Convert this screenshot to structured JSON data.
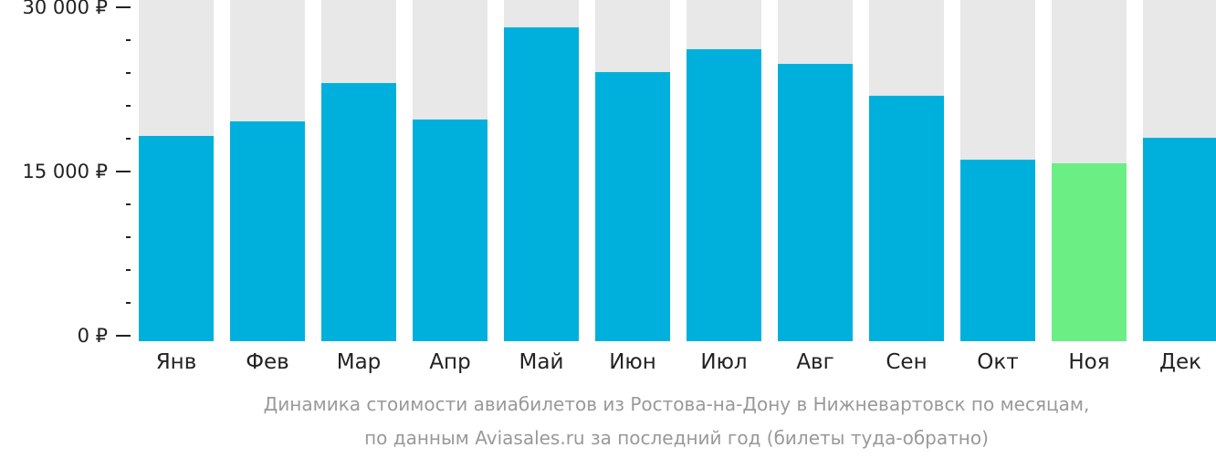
{
  "chart_data": {
    "type": "bar",
    "categories": [
      "Янв",
      "Фев",
      "Мар",
      "Апр",
      "Май",
      "Июн",
      "Июл",
      "Авг",
      "Сен",
      "Окт",
      "Ноя",
      "Дек"
    ],
    "values": [
      18250,
      19580,
      23080,
      19750,
      28170,
      24080,
      26170,
      24830,
      21920,
      16080,
      15750,
      18080
    ],
    "highlight_index": 10,
    "ylim": [
      0,
      30000
    ],
    "yticks": [
      {
        "value": 0,
        "label": "0 ₽"
      },
      {
        "value": 15000,
        "label": "15 000 ₽"
      },
      {
        "value": 30000,
        "label": "30 000 ₽"
      }
    ],
    "minor_tick_step": 3000,
    "title": "",
    "xlabel": "",
    "ylabel": "",
    "caption": [
      "Динамика стоимости авиабилетов из Ростова-на-Дону в Нижневартовск по месяцам,",
      "по данным Aviasales.ru за последний год (билеты туда-обратно)"
    ],
    "colors": {
      "bar": "#00b0dc",
      "highlight": "#6bee83",
      "background": "#e8e8e8",
      "axis": "#222222"
    }
  }
}
